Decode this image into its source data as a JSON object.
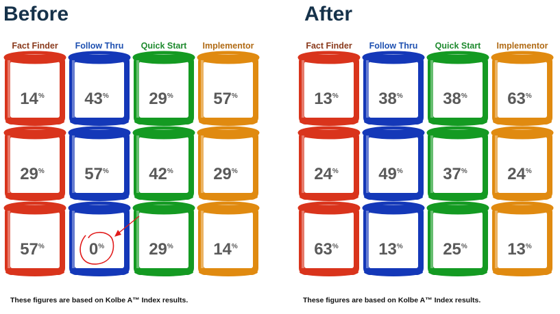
{
  "chart_data": [
    {
      "type": "table",
      "title": "Before",
      "categories": [
        "Fact Finder",
        "Follow Thru",
        "Quick Start",
        "Implementor"
      ],
      "series": [
        {
          "values": [
            14,
            43,
            29,
            57
          ]
        },
        {
          "values": [
            29,
            57,
            42,
            29
          ]
        },
        {
          "values": [
            57,
            0,
            29,
            14
          ]
        }
      ],
      "unit": "%",
      "footnote": "These figures are based on Kolbe A™ Index results."
    },
    {
      "type": "table",
      "title": "After",
      "categories": [
        "Fact Finder",
        "Follow Thru",
        "Quick Start",
        "Implementor"
      ],
      "series": [
        {
          "values": [
            13,
            38,
            38,
            63
          ]
        },
        {
          "values": [
            24,
            49,
            37,
            24
          ]
        },
        {
          "values": [
            63,
            13,
            25,
            13
          ]
        }
      ],
      "unit": "%",
      "footnote": "These figures are based on Kolbe A™ Index results."
    }
  ],
  "colors": {
    "Fact Finder": {
      "text": "#8a3a1c",
      "rim": "#d9341c"
    },
    "Follow Thru": {
      "text": "#1d4fb0",
      "rim": "#1438b8"
    },
    "Quick Start": {
      "text": "#1e8a2e",
      "rim": "#149a22"
    },
    "Implementor": {
      "text": "#b06a14",
      "rim": "#e08a10"
    }
  },
  "annotation": {
    "panel": 0,
    "row": 2,
    "col": 1,
    "color": "#e11a1a",
    "shape": "circle-with-arrow"
  }
}
